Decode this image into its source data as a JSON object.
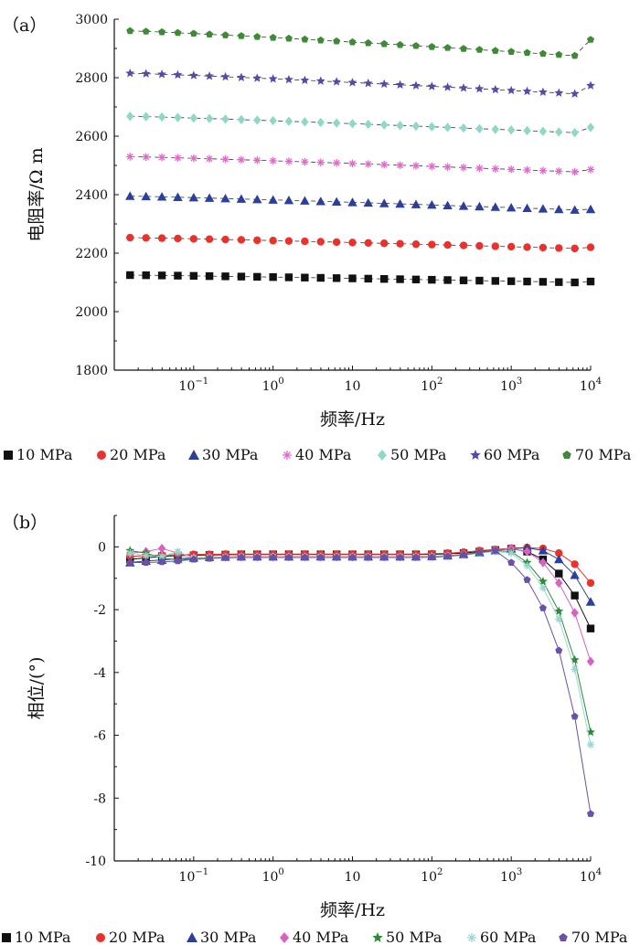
{
  "chart_data": [
    {
      "type": "scatter",
      "panel_label": "（a）",
      "xlabel": "频率/Hz",
      "ylabel": "电阻率/Ω m",
      "xscale": "log",
      "xlim": [
        0.01,
        10000
      ],
      "ylim": [
        1800,
        3000
      ],
      "xticks": [
        {
          "value": 0.1,
          "base": "10",
          "exp": "−1"
        },
        {
          "value": 1,
          "base": "10",
          "exp": "0"
        },
        {
          "value": 10,
          "base": "10",
          "exp": ""
        },
        {
          "value": 100,
          "base": "10",
          "exp": "2"
        },
        {
          "value": 1000,
          "base": "10",
          "exp": "3"
        },
        {
          "value": 10000,
          "base": "10",
          "exp": "4"
        }
      ],
      "yticks": [
        1800,
        2000,
        2200,
        2400,
        2600,
        2800,
        3000
      ],
      "x": [
        0.0158,
        0.0251,
        0.0398,
        0.0631,
        0.1,
        0.158,
        0.251,
        0.398,
        0.631,
        1,
        1.58,
        2.51,
        3.98,
        6.31,
        10,
        15.8,
        25.1,
        39.8,
        63.1,
        100,
        158,
        251,
        398,
        631,
        1000,
        1585,
        2512,
        3981,
        6310,
        10000
      ],
      "legend": {
        "placement": "below",
        "labels": [
          "10 MPa",
          "20 MPa",
          "30 MPa",
          "40 MPa",
          "50 MPa",
          "60 MPa",
          "70 MPa"
        ]
      },
      "series": [
        {
          "name": "10 MPa",
          "marker": "square",
          "color": "#111111",
          "start": 2125,
          "end": 2100,
          "last": 2103
        },
        {
          "name": "20 MPa",
          "marker": "circle",
          "color": "#e8322b",
          "start": 2253,
          "end": 2216,
          "last": 2220
        },
        {
          "name": "30 MPa",
          "marker": "triangle",
          "color": "#2b3f9c",
          "start": 2395,
          "end": 2348,
          "last": 2350
        },
        {
          "name": "40 MPa",
          "marker": "asterisk",
          "color": "#e069c8",
          "start": 2530,
          "end": 2478,
          "last": 2486
        },
        {
          "name": "50 MPa",
          "marker": "diamond",
          "color": "#8fd8c8",
          "start": 2668,
          "end": 2612,
          "last": 2630
        },
        {
          "name": "60 MPa",
          "marker": "star",
          "color": "#5a4aa8",
          "start": 2815,
          "end": 2745,
          "last": 2773
        },
        {
          "name": "70 MPa",
          "marker": "pentagon",
          "color": "#3e8a35",
          "start": 2960,
          "end": 2875,
          "last": 2930
        }
      ]
    },
    {
      "type": "line",
      "panel_label": "（b）",
      "xlabel": "频率/Hz",
      "ylabel": "相位/(°)",
      "xscale": "log",
      "xlim": [
        0.01,
        10000
      ],
      "ylim": [
        -10,
        1
      ],
      "xticks": [
        {
          "value": 0.1,
          "base": "10",
          "exp": "−1"
        },
        {
          "value": 1,
          "base": "10",
          "exp": "0"
        },
        {
          "value": 10,
          "base": "10",
          "exp": ""
        },
        {
          "value": 100,
          "base": "10",
          "exp": "2"
        },
        {
          "value": 1000,
          "base": "10",
          "exp": "3"
        },
        {
          "value": 10000,
          "base": "10",
          "exp": "4"
        }
      ],
      "yticks": [
        0,
        -2,
        -4,
        -6,
        -8,
        -10
      ],
      "x": [
        0.0158,
        0.0251,
        0.0398,
        0.0631,
        0.1,
        0.158,
        0.251,
        0.398,
        0.631,
        1,
        1.58,
        2.51,
        3.98,
        6.31,
        10,
        15.8,
        25.1,
        39.8,
        63.1,
        100,
        158,
        251,
        398,
        631,
        1000,
        1585,
        2512,
        3981,
        6310,
        10000
      ],
      "legend": {
        "placement": "below",
        "labels": [
          "10 MPa",
          "20 MPa",
          "30 MPa",
          "40 MPa",
          "50 MPa",
          "60 MPa",
          "70 MPa"
        ]
      },
      "series": [
        {
          "name": "10 MPa",
          "marker": "square",
          "color": "#111111",
          "values": [
            -0.4,
            -0.35,
            -0.3,
            -0.28,
            -0.27,
            -0.26,
            -0.25,
            -0.24,
            -0.24,
            -0.24,
            -0.24,
            -0.24,
            -0.24,
            -0.24,
            -0.24,
            -0.24,
            -0.24,
            -0.24,
            -0.24,
            -0.24,
            -0.22,
            -0.2,
            -0.15,
            -0.1,
            -0.06,
            -0.15,
            -0.4,
            -0.85,
            -1.55,
            -2.6
          ]
        },
        {
          "name": "20 MPa",
          "marker": "circle",
          "color": "#e8322b",
          "values": [
            -0.3,
            -0.28,
            -0.26,
            -0.25,
            -0.24,
            -0.24,
            -0.23,
            -0.23,
            -0.23,
            -0.23,
            -0.23,
            -0.23,
            -0.23,
            -0.23,
            -0.23,
            -0.23,
            -0.23,
            -0.23,
            -0.23,
            -0.22,
            -0.2,
            -0.17,
            -0.12,
            -0.08,
            -0.04,
            -0.02,
            -0.05,
            -0.2,
            -0.55,
            -1.15
          ]
        },
        {
          "name": "30 MPa",
          "marker": "triangle",
          "color": "#2b3f9c",
          "values": [
            -0.5,
            -0.45,
            -0.42,
            -0.38,
            -0.35,
            -0.33,
            -0.32,
            -0.31,
            -0.31,
            -0.31,
            -0.31,
            -0.31,
            -0.31,
            -0.31,
            -0.31,
            -0.31,
            -0.31,
            -0.31,
            -0.31,
            -0.3,
            -0.28,
            -0.24,
            -0.18,
            -0.12,
            -0.06,
            -0.03,
            -0.12,
            -0.4,
            -0.9,
            -1.75
          ]
        },
        {
          "name": "40 MPa",
          "marker": "diamond",
          "color": "#d663bf",
          "values": [
            -0.2,
            -0.15,
            -0.05,
            -0.2,
            -0.35,
            -0.33,
            -0.32,
            -0.31,
            -0.31,
            -0.31,
            -0.31,
            -0.31,
            -0.31,
            -0.31,
            -0.31,
            -0.31,
            -0.31,
            -0.31,
            -0.31,
            -0.3,
            -0.28,
            -0.24,
            -0.18,
            -0.1,
            -0.05,
            -0.15,
            -0.5,
            -1.15,
            -2.1,
            -3.65
          ]
        },
        {
          "name": "50 MPa",
          "marker": "star",
          "color": "#2e8a3a",
          "values": [
            -0.12,
            -0.2,
            -0.35,
            -0.42,
            -0.38,
            -0.35,
            -0.34,
            -0.33,
            -0.33,
            -0.33,
            -0.33,
            -0.33,
            -0.33,
            -0.33,
            -0.33,
            -0.33,
            -0.33,
            -0.33,
            -0.33,
            -0.32,
            -0.3,
            -0.26,
            -0.2,
            -0.12,
            -0.15,
            -0.5,
            -1.1,
            -2.05,
            -3.6,
            -5.9
          ]
        },
        {
          "name": "60 MPa",
          "marker": "asterisk",
          "color": "#9ad6d0",
          "values": [
            -0.2,
            -0.28,
            -0.3,
            -0.15,
            -0.35,
            -0.34,
            -0.33,
            -0.32,
            -0.32,
            -0.32,
            -0.32,
            -0.32,
            -0.32,
            -0.32,
            -0.32,
            -0.32,
            -0.32,
            -0.32,
            -0.32,
            -0.31,
            -0.29,
            -0.25,
            -0.2,
            -0.15,
            -0.2,
            -0.6,
            -1.3,
            -2.3,
            -3.9,
            -6.3
          ]
        },
        {
          "name": "70 MPa",
          "marker": "pentagon",
          "color": "#6a50a8",
          "values": [
            -0.5,
            -0.5,
            -0.48,
            -0.45,
            -0.4,
            -0.37,
            -0.35,
            -0.34,
            -0.34,
            -0.34,
            -0.34,
            -0.34,
            -0.34,
            -0.34,
            -0.34,
            -0.34,
            -0.34,
            -0.34,
            -0.34,
            -0.33,
            -0.3,
            -0.25,
            -0.18,
            -0.12,
            -0.5,
            -1.05,
            -1.95,
            -3.3,
            -5.4,
            -8.5
          ]
        }
      ]
    }
  ]
}
